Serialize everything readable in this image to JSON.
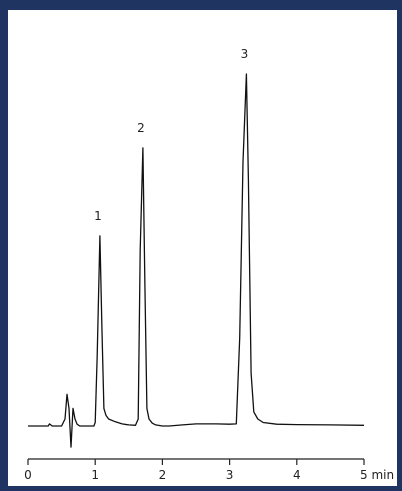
{
  "chart_data": {
    "type": "line",
    "title": "",
    "xlabel": "",
    "ylabel": "",
    "xlim": [
      0,
      5
    ],
    "x_unit": "min",
    "x_ticks": [
      0,
      1,
      2,
      3,
      4,
      5
    ],
    "x_tick_labels": [
      "0",
      "1",
      "2",
      "3",
      "4",
      "5 min"
    ],
    "grid": false,
    "line_color": "#111111",
    "background_color": "#1f3461",
    "peaks": [
      {
        "label": "1",
        "retention_time": 1.07,
        "relative_height": 0.54
      },
      {
        "label": "2",
        "retention_time": 1.71,
        "relative_height": 0.79
      },
      {
        "label": "3",
        "retention_time": 3.25,
        "relative_height": 1.0
      }
    ],
    "series": [
      {
        "x": [
          0,
          0.3,
          0.32,
          0.34,
          0.36,
          0.5,
          0.55,
          0.58,
          0.61,
          0.64,
          0.67,
          0.7,
          0.73,
          0.77,
          0.82,
          0.9,
          0.98,
          1.0,
          1.03,
          1.07,
          1.1,
          1.13,
          1.16,
          1.2,
          1.3,
          1.4,
          1.5,
          1.6,
          1.64,
          1.67,
          1.71,
          1.74,
          1.77,
          1.8,
          1.85,
          1.9,
          2.0,
          2.1,
          2.3,
          2.5,
          2.8,
          3.0,
          3.1,
          3.15,
          3.2,
          3.25,
          3.28,
          3.32,
          3.36,
          3.42,
          3.5,
          3.7,
          4.0,
          4.5,
          5.0
        ],
        "y": [
          0,
          0,
          0.006,
          0.003,
          0,
          0,
          0.02,
          0.09,
          0.05,
          -0.06,
          0.05,
          0.02,
          0.005,
          0,
          0,
          0,
          0,
          0.01,
          0.2,
          0.54,
          0.28,
          0.05,
          0.03,
          0.02,
          0.012,
          0.006,
          0.003,
          0.002,
          0.02,
          0.5,
          0.79,
          0.4,
          0.05,
          0.02,
          0.008,
          0.003,
          0,
          0,
          0.003,
          0.006,
          0.006,
          0.005,
          0.006,
          0.25,
          0.75,
          1.0,
          0.7,
          0.15,
          0.04,
          0.02,
          0.01,
          0.005,
          0.004,
          0.003,
          0.002
        ]
      }
    ]
  }
}
